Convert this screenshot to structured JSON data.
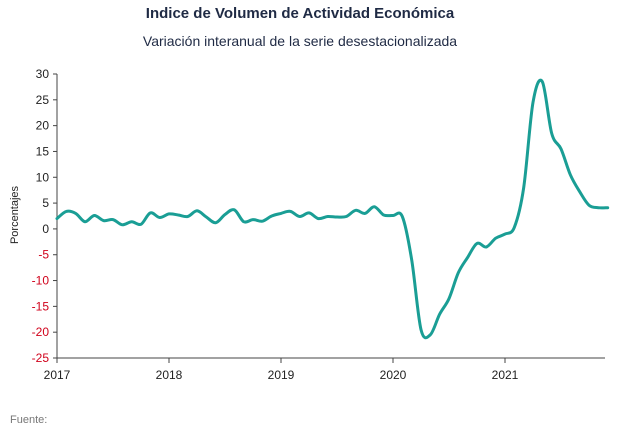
{
  "chart_data": {
    "type": "line",
    "title": "Indice de Volumen de  Actividad Económica",
    "subtitle": "Variación interanual de la serie desestacionalizada",
    "xlabel": "",
    "ylabel": "Porcentajes",
    "ylim": [
      -25,
      30
    ],
    "yticks": [
      30,
      25,
      20,
      15,
      10,
      5,
      0,
      -5,
      -10,
      -15,
      -20,
      -25
    ],
    "xticks": [
      "2017",
      "2018",
      "2019",
      "2020",
      "2021"
    ],
    "grid": false,
    "line_color": "#1a9e95",
    "positive_tick_color": "#222222",
    "negative_tick_color": "#d0021b",
    "series": [
      {
        "x": [
          "2017-01",
          "2017-02",
          "2017-03",
          "2017-04",
          "2017-05",
          "2017-06",
          "2017-07",
          "2017-08",
          "2017-09",
          "2017-10",
          "2017-11",
          "2017-12",
          "2018-01",
          "2018-02",
          "2018-03",
          "2018-04",
          "2018-05",
          "2018-06",
          "2018-07",
          "2018-08",
          "2018-09",
          "2018-10",
          "2018-11",
          "2018-12",
          "2019-01",
          "2019-02",
          "2019-03",
          "2019-04",
          "2019-05",
          "2019-06",
          "2019-07",
          "2019-08",
          "2019-09",
          "2019-10",
          "2019-11",
          "2019-12",
          "2020-01",
          "2020-02",
          "2020-03",
          "2020-04",
          "2020-05",
          "2020-06",
          "2020-07",
          "2020-08",
          "2020-09",
          "2020-10",
          "2020-11",
          "2020-12",
          "2021-01",
          "2021-02",
          "2021-03",
          "2021-04",
          "2021-05",
          "2021-06",
          "2021-07",
          "2021-08",
          "2021-09",
          "2021-10",
          "2021-11",
          "2021-12"
        ],
        "values": [
          2.0,
          3.4,
          3.0,
          1.4,
          2.6,
          1.6,
          1.8,
          0.8,
          1.4,
          0.9,
          3.1,
          2.2,
          2.9,
          2.7,
          2.4,
          3.5,
          2.3,
          1.2,
          2.8,
          3.7,
          1.4,
          1.8,
          1.5,
          2.5,
          3.0,
          3.4,
          2.4,
          3.1,
          2.0,
          2.4,
          2.3,
          2.4,
          3.6,
          3.0,
          4.3,
          2.7,
          2.6,
          2.4,
          -6.0,
          -19.5,
          -20.5,
          -16.5,
          -13.5,
          -8.5,
          -5.5,
          -2.8,
          -3.5,
          -1.8,
          -1.0,
          0.3,
          8.0,
          24.5,
          28.5,
          18.5,
          15.5,
          10.5,
          7.2,
          4.6,
          4.1,
          4.1
        ]
      }
    ]
  },
  "footer": {
    "source_label": "Fuente:"
  }
}
